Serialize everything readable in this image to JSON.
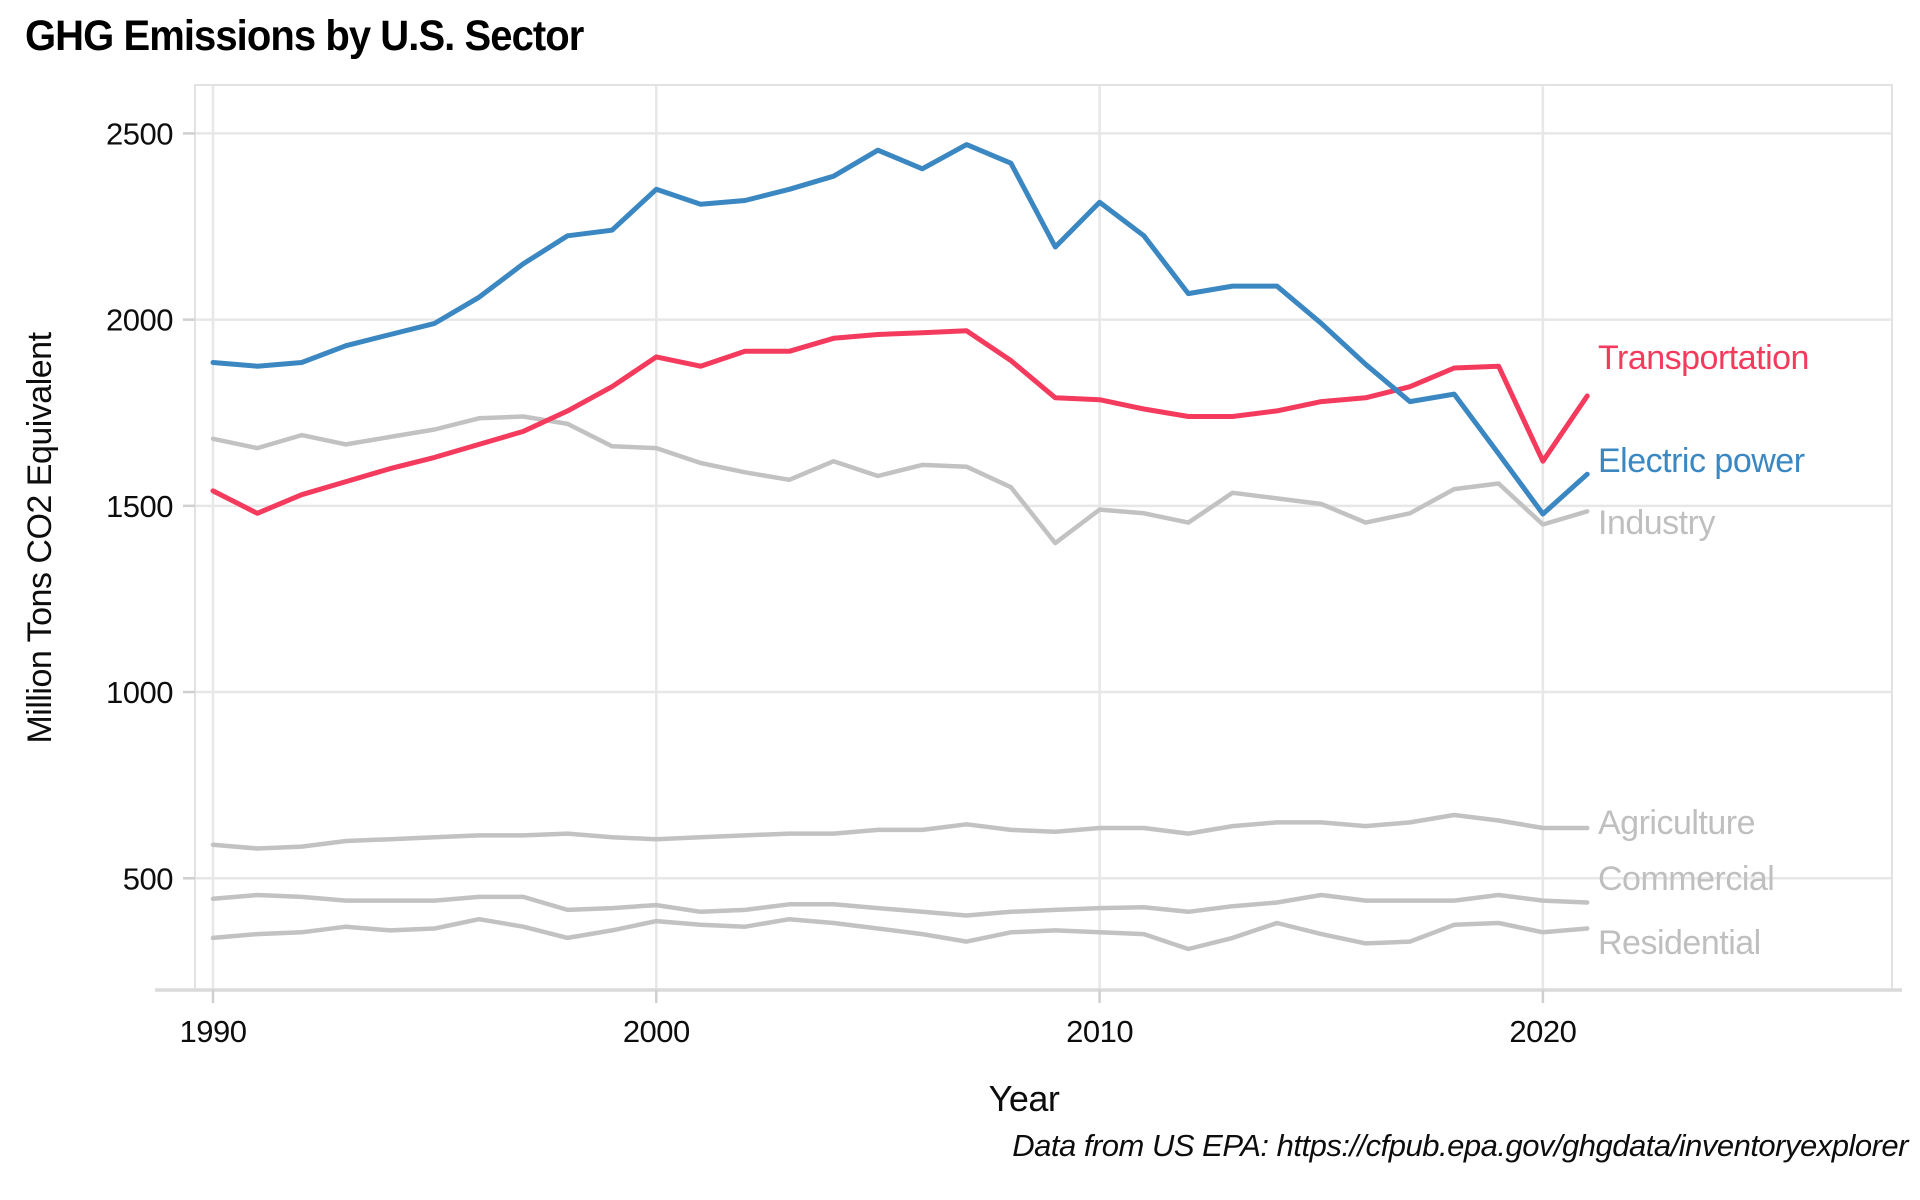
{
  "page": {
    "title": "GHG Emissions by U.S. Sector",
    "footer": "Data from US EPA: https://cfpub.epa.gov/ghgdata/inventoryexplorer"
  },
  "chart_data": {
    "type": "line",
    "title": "GHG Emissions by U.S. Sector",
    "xlabel": "Year",
    "ylabel": "Million Tons CO2 Equivalent",
    "source_note": "Data from US EPA: https://cfpub.epa.gov/ghgdata/inventoryexplorer",
    "x": [
      1990,
      1991,
      1992,
      1993,
      1994,
      1995,
      1996,
      1997,
      1998,
      1999,
      2000,
      2001,
      2002,
      2003,
      2004,
      2005,
      2006,
      2007,
      2008,
      2009,
      2010,
      2011,
      2012,
      2013,
      2014,
      2015,
      2016,
      2017,
      2018,
      2019,
      2020,
      2021
    ],
    "x_ticks": [
      1990,
      2000,
      2010,
      2020
    ],
    "y_ticks": [
      500,
      1000,
      1500,
      2000,
      2500
    ],
    "ylim": [
      200,
      2630
    ],
    "grid": true,
    "legend_position": "right-end-labels",
    "units": "Million Tons CO2 Equivalent",
    "series": [
      {
        "name": "Transportation",
        "color": "#F43B5D",
        "values": [
          1540,
          1480,
          1530,
          1565,
          1600,
          1630,
          1665,
          1700,
          1755,
          1820,
          1900,
          1875,
          1915,
          1915,
          1950,
          1960,
          1965,
          1970,
          1890,
          1790,
          1785,
          1760,
          1740,
          1740,
          1755,
          1780,
          1790,
          1820,
          1870,
          1875,
          1620,
          1795
        ]
      },
      {
        "name": "Electric power",
        "color": "#3A87C2",
        "values": [
          1885,
          1875,
          1885,
          1930,
          1960,
          1990,
          2060,
          2150,
          2225,
          2240,
          2350,
          2310,
          2320,
          2350,
          2385,
          2455,
          2405,
          2470,
          2420,
          2195,
          2315,
          2225,
          2070,
          2090,
          2090,
          1990,
          1880,
          1780,
          1800,
          1640,
          1478,
          1585
        ]
      },
      {
        "name": "Industry",
        "color": "#C2C2C2",
        "values": [
          1680,
          1655,
          1690,
          1665,
          1685,
          1705,
          1735,
          1740,
          1720,
          1660,
          1655,
          1615,
          1590,
          1570,
          1620,
          1580,
          1610,
          1605,
          1550,
          1400,
          1490,
          1480,
          1455,
          1535,
          1520,
          1505,
          1455,
          1480,
          1545,
          1560,
          1450,
          1485
        ]
      },
      {
        "name": "Agriculture",
        "color": "#C2C2C2",
        "values": [
          590,
          580,
          585,
          600,
          605,
          610,
          615,
          615,
          620,
          610,
          605,
          610,
          615,
          620,
          620,
          630,
          630,
          645,
          630,
          625,
          635,
          635,
          620,
          640,
          650,
          650,
          640,
          650,
          670,
          655,
          635,
          635
        ]
      },
      {
        "name": "Commercial",
        "color": "#C2C2C2",
        "values": [
          445,
          455,
          450,
          440,
          440,
          440,
          450,
          450,
          415,
          420,
          428,
          410,
          415,
          430,
          430,
          420,
          410,
          400,
          410,
          415,
          420,
          422,
          410,
          425,
          435,
          455,
          440,
          440,
          440,
          455,
          440,
          435
        ]
      },
      {
        "name": "Residential",
        "color": "#C2C2C2",
        "values": [
          340,
          350,
          355,
          370,
          360,
          365,
          390,
          370,
          340,
          360,
          385,
          375,
          370,
          390,
          380,
          365,
          350,
          330,
          355,
          360,
          355,
          350,
          310,
          340,
          380,
          350,
          325,
          330,
          375,
          380,
          355,
          365
        ]
      }
    ],
    "label_colors": {
      "Transportation": "#F43B5D",
      "Electric power": "#3A87C2",
      "Industry": "#BFBFBF",
      "Agriculture": "#BFBFBF",
      "Commercial": "#BFBFBF",
      "Residential": "#BFBFBF"
    }
  }
}
